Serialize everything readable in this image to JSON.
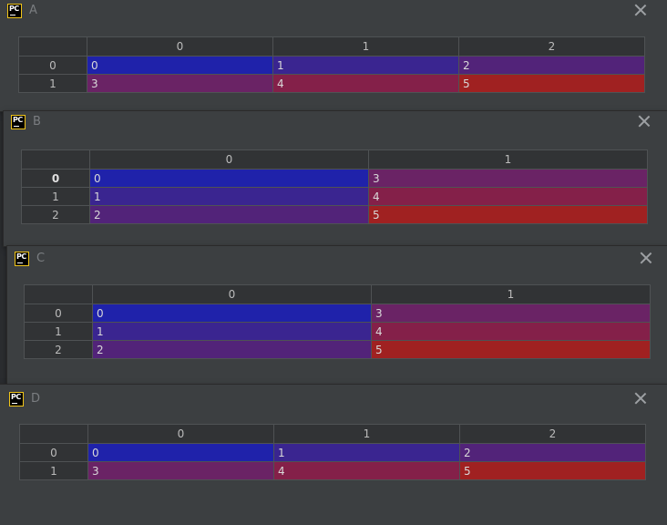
{
  "colors": {
    "cell_0": "#1f22aa",
    "cell_1": "#3a2590",
    "cell_2": "#522379",
    "cell_3": "#6a2365",
    "cell_4": "#842049",
    "cell_5": "#a02121"
  },
  "windows": [
    {
      "title": "A",
      "icon": "pycharm-icon",
      "close_icon": "close-icon",
      "columns": [
        "0",
        "1",
        "2"
      ],
      "rows": [
        {
          "label": "0",
          "bold": false,
          "cells": [
            "0",
            "1",
            "2"
          ]
        },
        {
          "label": "1",
          "bold": false,
          "cells": [
            "3",
            "4",
            "5"
          ]
        }
      ]
    },
    {
      "title": "B",
      "icon": "pycharm-icon",
      "close_icon": "close-icon",
      "columns": [
        "0",
        "1"
      ],
      "rows": [
        {
          "label": "0",
          "bold": true,
          "cells": [
            "0",
            "3"
          ]
        },
        {
          "label": "1",
          "bold": false,
          "cells": [
            "1",
            "4"
          ]
        },
        {
          "label": "2",
          "bold": false,
          "cells": [
            "2",
            "5"
          ]
        }
      ]
    },
    {
      "title": "C",
      "icon": "pycharm-icon",
      "close_icon": "close-icon",
      "columns": [
        "0",
        "1"
      ],
      "rows": [
        {
          "label": "0",
          "bold": false,
          "cells": [
            "0",
            "3"
          ]
        },
        {
          "label": "1",
          "bold": false,
          "cells": [
            "1",
            "4"
          ]
        },
        {
          "label": "2",
          "bold": false,
          "cells": [
            "2",
            "5"
          ]
        }
      ]
    },
    {
      "title": "D",
      "icon": "pycharm-icon",
      "close_icon": "close-icon",
      "columns": [
        "0",
        "1",
        "2"
      ],
      "rows": [
        {
          "label": "0",
          "bold": false,
          "cells": [
            "0",
            "1",
            "2"
          ]
        },
        {
          "label": "1",
          "bold": false,
          "cells": [
            "3",
            "4",
            "5"
          ]
        }
      ]
    }
  ]
}
